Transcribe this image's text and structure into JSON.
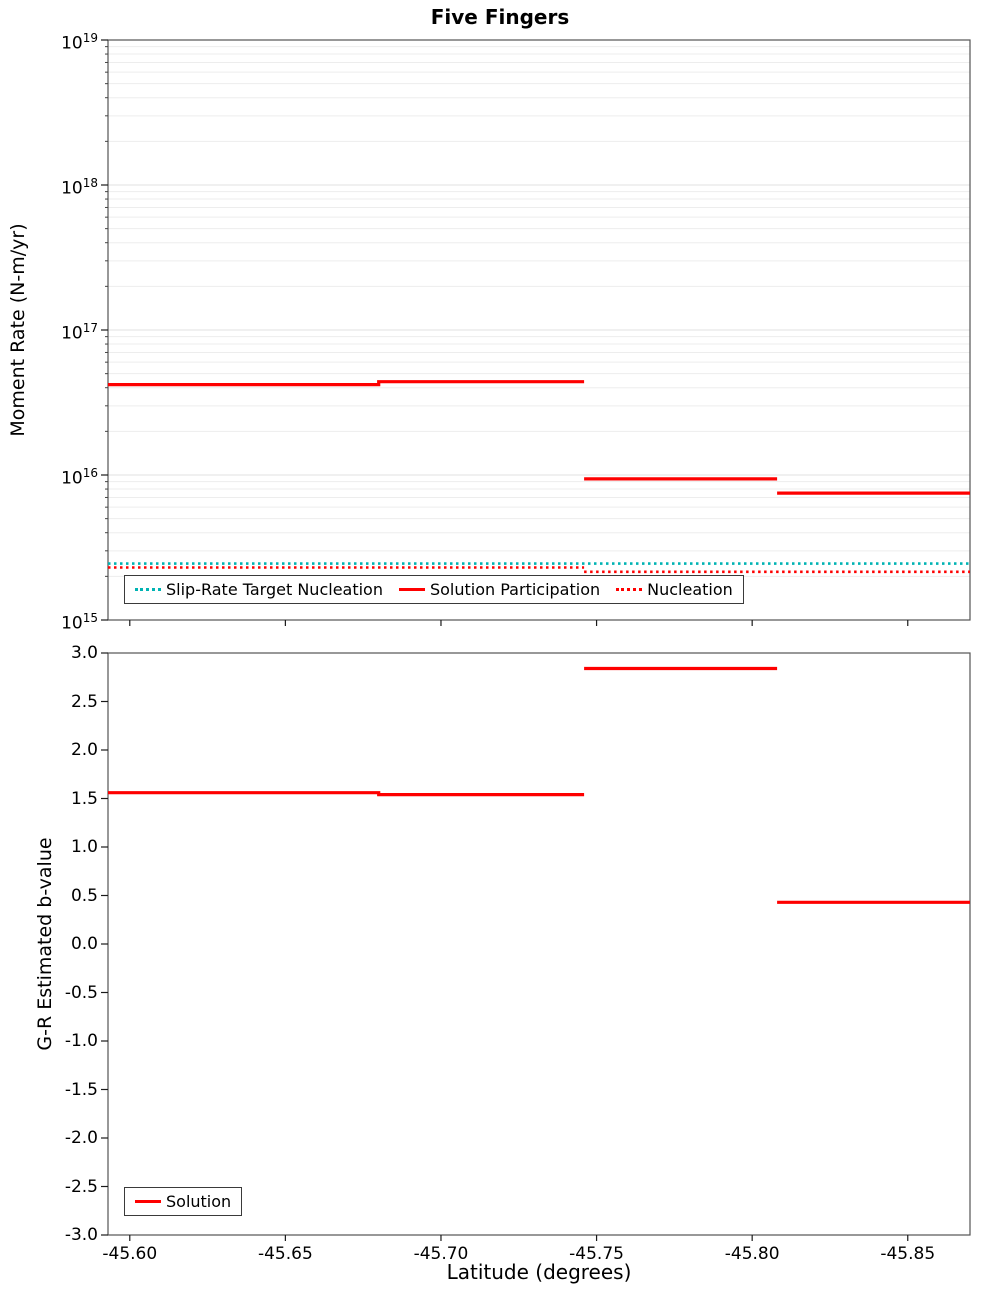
{
  "chart_data": [
    {
      "type": "line",
      "title": "Five Fingers",
      "ylabel": "Moment Rate (N-m/yr)",
      "yscale": "log",
      "ylim": [
        1000000000000000.0,
        1e+19
      ],
      "xlim": [
        -45.593,
        -45.87
      ],
      "x_inverted": true,
      "grid": true,
      "legend_position": "bottom-left",
      "x_tick_values": [
        -45.6,
        -45.65,
        -45.7,
        -45.75,
        -45.8,
        -45.85
      ],
      "y_tick_exponents": [
        15,
        16,
        17,
        18,
        19
      ],
      "series": [
        {
          "name": "Slip-Rate Target Nucleation",
          "color": "#00b3b3",
          "style": "dotted",
          "segments": [
            [
              [
                -45.593,
                2450000000000000.0
              ],
              [
                -45.87,
                2450000000000000.0
              ]
            ]
          ]
        },
        {
          "name": "Solution Participation",
          "color": "#fe0000",
          "style": "solid",
          "segments": [
            [
              [
                -45.593,
                4.2e+16
              ],
              [
                -45.68,
                4.2e+16
              ],
              [
                -45.68,
                4.4e+16
              ],
              [
                -45.746,
                4.4e+16
              ]
            ],
            [
              [
                -45.746,
                9400000000000000.0
              ],
              [
                -45.808,
                9400000000000000.0
              ]
            ],
            [
              [
                -45.808,
                7500000000000000.0
              ],
              [
                -45.87,
                7500000000000000.0
              ]
            ]
          ]
        },
        {
          "name": "Nucleation",
          "color": "#fe0000",
          "style": "dotted",
          "segments": [
            [
              [
                -45.593,
                2300000000000000.0
              ],
              [
                -45.746,
                2300000000000000.0
              ]
            ],
            [
              [
                -45.746,
                2150000000000000.0
              ],
              [
                -45.87,
                2150000000000000.0
              ]
            ]
          ]
        }
      ]
    },
    {
      "type": "line",
      "ylabel": "G-R Estimated b-value",
      "xlabel": "Latitude (degrees)",
      "yscale": "linear",
      "ylim": [
        -3.0,
        3.0
      ],
      "xlim": [
        -45.593,
        -45.87
      ],
      "x_inverted": true,
      "grid": false,
      "legend_position": "bottom-left",
      "x_tick_values": [
        -45.6,
        -45.65,
        -45.7,
        -45.75,
        -45.8,
        -45.85
      ],
      "x_tick_labels": [
        "-45.60",
        "-45.65",
        "-45.70",
        "-45.75",
        "-45.80",
        "-45.85"
      ],
      "y_tick_values": [
        3.0,
        2.5,
        2.0,
        1.5,
        1.0,
        0.5,
        0.0,
        -0.5,
        -1.0,
        -1.5,
        -2.0,
        -2.5,
        -3.0
      ],
      "y_tick_labels": [
        "3.0",
        "2.5",
        "2.0",
        "1.5",
        "1.0",
        "0.5",
        "0.0",
        "-0.5",
        "-1.0",
        "-1.5",
        "-2.0",
        "-2.5",
        "-3.0"
      ],
      "series": [
        {
          "name": "Solution",
          "color": "#fe0000",
          "style": "solid",
          "segments": [
            [
              [
                -45.593,
                1.56
              ],
              [
                -45.68,
                1.56
              ],
              [
                -45.68,
                1.54
              ],
              [
                -45.746,
                1.54
              ]
            ],
            [
              [
                -45.746,
                2.84
              ],
              [
                -45.808,
                2.84
              ]
            ],
            [
              [
                -45.808,
                0.43
              ],
              [
                -45.87,
                0.43
              ]
            ]
          ]
        }
      ]
    }
  ]
}
